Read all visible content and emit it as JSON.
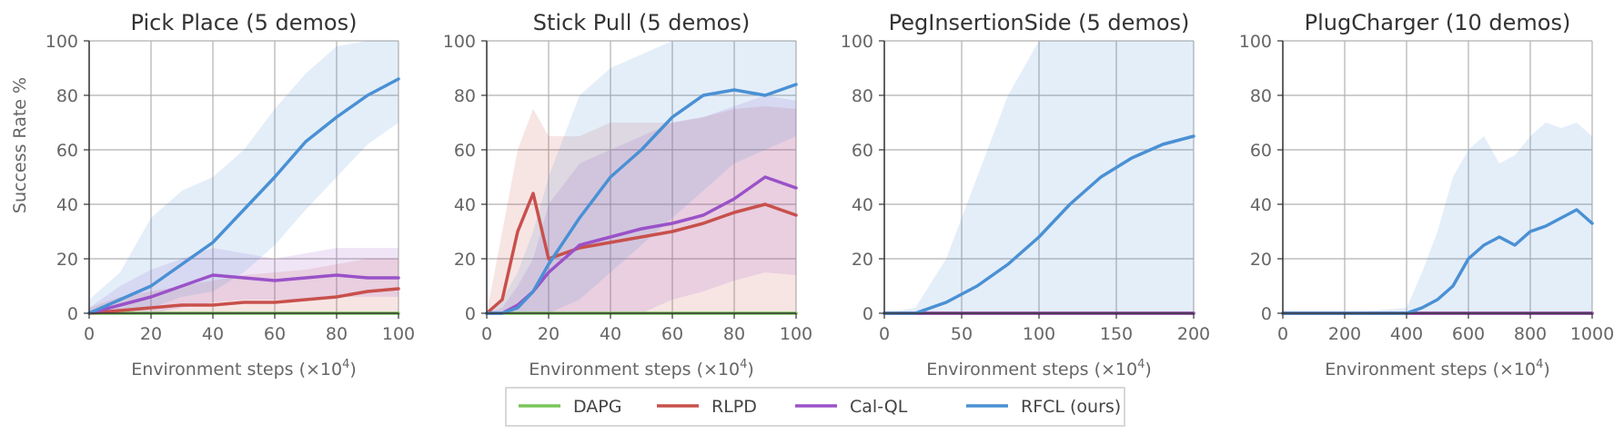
{
  "figure": {
    "ylabel": "Success Rate %",
    "xlabel_text": "Environment steps (×10",
    "xlabel_exp": "4",
    "xlabel_close": ")"
  },
  "legend": [
    {
      "name": "DAPG",
      "color": "#7ac55a"
    },
    {
      "name": "RLPD",
      "color": "#c8504c"
    },
    {
      "name": "Cal-QL",
      "color": "#9a52c8"
    },
    {
      "name": "RFCL (ours)",
      "color": "#4a90d4"
    }
  ],
  "chart_data": [
    {
      "type": "line",
      "title": "Pick Place (5 demos)",
      "xlabel": "Environment steps (×10^4)",
      "ylabel": "Success Rate %",
      "xlim": [
        0,
        100
      ],
      "ylim": [
        0,
        100
      ],
      "xticks": [
        0,
        20,
        40,
        60,
        80,
        100
      ],
      "yticks": [
        0,
        20,
        40,
        60,
        80,
        100
      ],
      "grid": true,
      "x": [
        0,
        10,
        20,
        30,
        40,
        50,
        60,
        70,
        80,
        90,
        100
      ],
      "series": [
        {
          "name": "DAPG",
          "values": [
            0,
            0,
            0,
            0,
            0,
            0,
            0,
            0,
            0,
            0,
            0
          ],
          "band_low": [
            0,
            0,
            0,
            0,
            0,
            0,
            0,
            0,
            0,
            0,
            0
          ],
          "band_high": [
            0,
            0,
            0,
            0,
            0,
            0,
            0,
            0,
            0,
            0,
            0
          ]
        },
        {
          "name": "RLPD",
          "values": [
            0,
            1,
            2,
            3,
            3,
            4,
            4,
            5,
            6,
            8,
            9
          ],
          "band_low": [
            0,
            0,
            0,
            0,
            0,
            0,
            0,
            0,
            0,
            0,
            0
          ],
          "band_high": [
            2,
            6,
            8,
            10,
            12,
            14,
            15,
            16,
            18,
            20,
            20
          ]
        },
        {
          "name": "Cal-QL",
          "values": [
            0,
            3,
            6,
            10,
            14,
            13,
            12,
            13,
            14,
            13,
            13
          ],
          "band_low": [
            0,
            0,
            0,
            2,
            4,
            5,
            5,
            5,
            6,
            6,
            6
          ],
          "band_high": [
            2,
            10,
            16,
            20,
            24,
            22,
            20,
            22,
            24,
            24,
            24
          ]
        },
        {
          "name": "RFCL (ours)",
          "values": [
            0,
            5,
            10,
            18,
            26,
            38,
            50,
            63,
            72,
            80,
            86
          ],
          "band_low": [
            0,
            0,
            2,
            6,
            8,
            15,
            25,
            38,
            50,
            62,
            70
          ],
          "band_high": [
            5,
            15,
            35,
            45,
            50,
            60,
            75,
            88,
            98,
            100,
            100
          ]
        }
      ]
    },
    {
      "type": "line",
      "title": "Stick Pull (5 demos)",
      "xlabel": "Environment steps (×10^4)",
      "ylabel": "",
      "xlim": [
        0,
        100
      ],
      "ylim": [
        0,
        100
      ],
      "xticks": [
        0,
        20,
        40,
        60,
        80,
        100
      ],
      "yticks": [
        0,
        20,
        40,
        60,
        80,
        100
      ],
      "grid": true,
      "x": [
        0,
        5,
        10,
        15,
        20,
        30,
        40,
        50,
        60,
        70,
        80,
        90,
        100
      ],
      "series": [
        {
          "name": "DAPG",
          "values": [
            0,
            0,
            0,
            0,
            0,
            0,
            0,
            0,
            0,
            0,
            0,
            0,
            0
          ],
          "band_low": [
            0,
            0,
            0,
            0,
            0,
            0,
            0,
            0,
            0,
            0,
            0,
            0,
            0
          ],
          "band_high": [
            0,
            0,
            0,
            0,
            0,
            0,
            0,
            0,
            0,
            0,
            0,
            0,
            0
          ]
        },
        {
          "name": "RLPD",
          "values": [
            0,
            5,
            30,
            44,
            20,
            24,
            26,
            28,
            30,
            33,
            37,
            40,
            36
          ],
          "band_low": [
            0,
            0,
            0,
            0,
            0,
            0,
            0,
            0,
            0,
            0,
            0,
            0,
            0
          ],
          "band_high": [
            0,
            30,
            60,
            75,
            65,
            65,
            70,
            70,
            70,
            72,
            75,
            76,
            75
          ]
        },
        {
          "name": "Cal-QL",
          "values": [
            0,
            0,
            3,
            8,
            15,
            25,
            28,
            31,
            33,
            36,
            42,
            50,
            46
          ],
          "band_low": [
            0,
            0,
            0,
            0,
            0,
            0,
            0,
            0,
            5,
            8,
            12,
            15,
            14
          ],
          "band_high": [
            0,
            2,
            10,
            20,
            40,
            55,
            60,
            65,
            70,
            72,
            76,
            80,
            78
          ]
        },
        {
          "name": "RFCL (ours)",
          "values": [
            0,
            0,
            2,
            8,
            18,
            35,
            50,
            60,
            72,
            80,
            82,
            80,
            84
          ],
          "band_low": [
            0,
            0,
            0,
            0,
            0,
            5,
            15,
            25,
            35,
            45,
            55,
            60,
            65
          ],
          "band_high": [
            0,
            5,
            15,
            30,
            50,
            80,
            90,
            95,
            100,
            100,
            100,
            100,
            100
          ]
        }
      ]
    },
    {
      "type": "line",
      "title": "PegInsertionSide (5 demos)",
      "xlabel": "Environment steps (×10^4)",
      "ylabel": "",
      "xlim": [
        0,
        200
      ],
      "ylim": [
        0,
        100
      ],
      "xticks": [
        0,
        50,
        100,
        150,
        200
      ],
      "yticks": [
        0,
        20,
        40,
        60,
        80,
        100
      ],
      "grid": true,
      "x": [
        0,
        20,
        40,
        60,
        80,
        100,
        120,
        140,
        160,
        180,
        200
      ],
      "series": [
        {
          "name": "DAPG",
          "values": [
            0,
            0,
            0,
            0,
            0,
            0,
            0,
            0,
            0,
            0,
            0
          ],
          "band_low": [
            0,
            0,
            0,
            0,
            0,
            0,
            0,
            0,
            0,
            0,
            0
          ],
          "band_high": [
            0,
            0,
            0,
            0,
            0,
            0,
            0,
            0,
            0,
            0,
            0
          ]
        },
        {
          "name": "RLPD",
          "values": [
            0,
            0,
            0,
            0,
            0,
            0,
            0,
            0,
            0,
            0,
            0
          ],
          "band_low": [
            0,
            0,
            0,
            0,
            0,
            0,
            0,
            0,
            0,
            0,
            0
          ],
          "band_high": [
            0,
            0,
            0,
            0,
            0,
            0,
            0,
            0,
            0,
            0,
            0
          ]
        },
        {
          "name": "Cal-QL",
          "values": [
            0,
            0,
            0,
            0,
            0,
            0,
            0,
            0,
            0,
            0,
            0
          ],
          "band_low": [
            0,
            0,
            0,
            0,
            0,
            0,
            0,
            0,
            0,
            0,
            0
          ],
          "band_high": [
            0,
            0,
            0,
            0,
            0,
            0,
            0,
            0,
            0,
            0,
            0
          ]
        },
        {
          "name": "RFCL (ours)",
          "values": [
            0,
            0,
            4,
            10,
            18,
            28,
            40,
            50,
            57,
            62,
            65
          ],
          "band_low": [
            0,
            0,
            0,
            0,
            0,
            0,
            0,
            0,
            0,
            0,
            0
          ],
          "band_high": [
            0,
            2,
            20,
            50,
            80,
            100,
            100,
            100,
            100,
            100,
            100
          ]
        }
      ]
    },
    {
      "type": "line",
      "title": "PlugCharger (10 demos)",
      "xlabel": "Environment steps (×10^4)",
      "ylabel": "",
      "xlim": [
        0,
        1000
      ],
      "ylim": [
        0,
        100
      ],
      "xticks": [
        0,
        200,
        400,
        600,
        800,
        1000
      ],
      "yticks": [
        0,
        20,
        40,
        60,
        80,
        100
      ],
      "grid": true,
      "x": [
        0,
        200,
        400,
        450,
        500,
        550,
        600,
        650,
        700,
        750,
        800,
        850,
        900,
        950,
        1000
      ],
      "series": [
        {
          "name": "DAPG",
          "values": [
            0,
            0,
            0,
            0,
            0,
            0,
            0,
            0,
            0,
            0,
            0,
            0,
            0,
            0,
            0
          ],
          "band_low": [
            0,
            0,
            0,
            0,
            0,
            0,
            0,
            0,
            0,
            0,
            0,
            0,
            0,
            0,
            0
          ],
          "band_high": [
            0,
            0,
            0,
            0,
            0,
            0,
            0,
            0,
            0,
            0,
            0,
            0,
            0,
            0,
            0
          ]
        },
        {
          "name": "RLPD",
          "values": [
            0,
            0,
            0,
            0,
            0,
            0,
            0,
            0,
            0,
            0,
            0,
            0,
            0,
            0,
            0
          ],
          "band_low": [
            0,
            0,
            0,
            0,
            0,
            0,
            0,
            0,
            0,
            0,
            0,
            0,
            0,
            0,
            0
          ],
          "band_high": [
            0,
            0,
            0,
            0,
            0,
            0,
            0,
            0,
            0,
            0,
            0,
            0,
            0,
            0,
            0
          ]
        },
        {
          "name": "Cal-QL",
          "values": [
            0,
            0,
            0,
            0,
            0,
            0,
            0,
            0,
            0,
            0,
            0,
            0,
            0,
            0,
            0
          ],
          "band_low": [
            0,
            0,
            0,
            0,
            0,
            0,
            0,
            0,
            0,
            0,
            0,
            0,
            0,
            0,
            0
          ],
          "band_high": [
            0,
            0,
            0,
            0,
            0,
            0,
            0,
            0,
            0,
            0,
            0,
            0,
            0,
            0,
            0
          ]
        },
        {
          "name": "RFCL (ours)",
          "values": [
            0,
            0,
            0,
            2,
            5,
            10,
            20,
            25,
            28,
            25,
            30,
            32,
            35,
            38,
            33
          ],
          "band_low": [
            0,
            0,
            0,
            0,
            0,
            0,
            0,
            0,
            0,
            0,
            0,
            0,
            0,
            0,
            0
          ],
          "band_high": [
            0,
            0,
            2,
            15,
            30,
            50,
            60,
            65,
            55,
            58,
            65,
            70,
            68,
            70,
            65
          ]
        }
      ]
    }
  ]
}
